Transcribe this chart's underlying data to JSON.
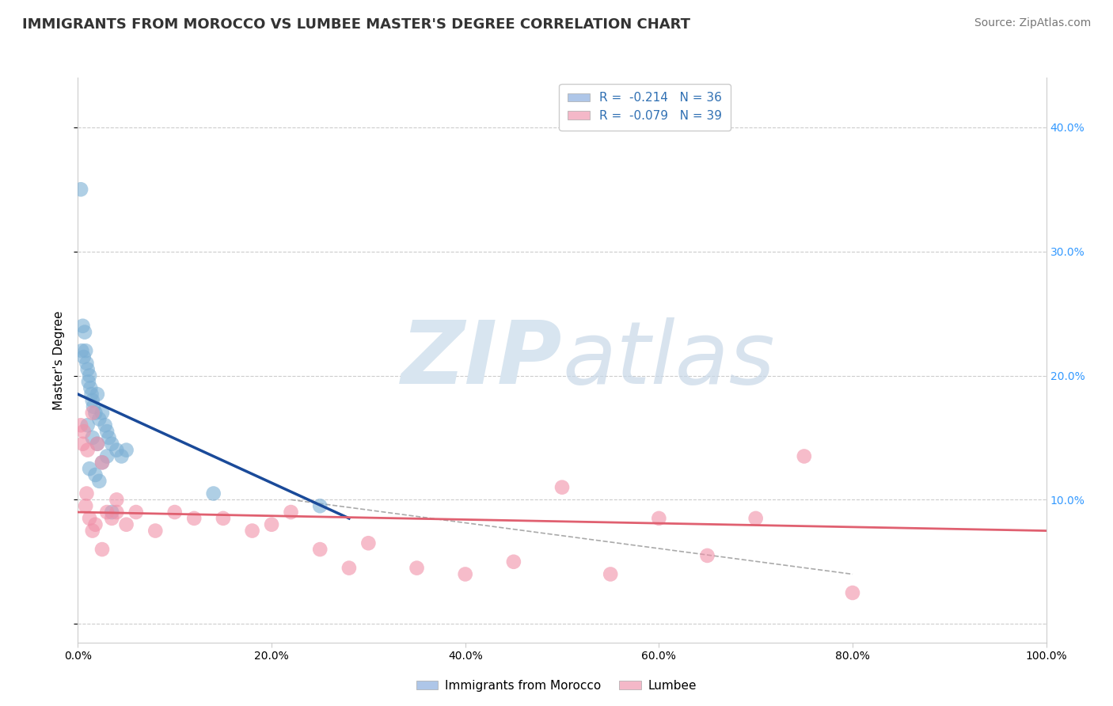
{
  "title": "IMMIGRANTS FROM MOROCCO VS LUMBEE MASTER'S DEGREE CORRELATION CHART",
  "source_text": "Source: ZipAtlas.com",
  "ylabel": "Master's Degree",
  "xlim": [
    0.0,
    100.0
  ],
  "ylim": [
    -1.5,
    44.0
  ],
  "x_ticks": [
    0.0,
    20.0,
    40.0,
    60.0,
    80.0,
    100.0
  ],
  "x_tick_labels": [
    "0.0%",
    "20.0%",
    "40.0%",
    "60.0%",
    "80.0%",
    "100.0%"
  ],
  "y_ticks_right": [
    10.0,
    20.0,
    30.0,
    40.0
  ],
  "y_tick_labels_right": [
    "10.0%",
    "20.0%",
    "30.0%",
    "40.0%"
  ],
  "legend_entries": [
    {
      "label": "R =  -0.214   N = 36",
      "facecolor": "#aec6e8"
    },
    {
      "label": "R =  -0.079   N = 39",
      "facecolor": "#f4b8c8"
    }
  ],
  "legend_labels_bottom": [
    "Immigrants from Morocco",
    "Lumbee"
  ],
  "blue_scatter_x": [
    0.3,
    0.4,
    0.5,
    0.6,
    0.7,
    0.8,
    0.9,
    1.0,
    1.1,
    1.2,
    1.3,
    1.4,
    1.5,
    1.6,
    1.8,
    2.0,
    2.2,
    2.5,
    2.8,
    3.0,
    3.2,
    3.5,
    4.0,
    4.5,
    5.0,
    1.0,
    1.5,
    2.0,
    2.5,
    3.0,
    1.2,
    1.8,
    2.2,
    3.5,
    14.0,
    25.0
  ],
  "blue_scatter_y": [
    35.0,
    22.0,
    24.0,
    21.5,
    23.5,
    22.0,
    21.0,
    20.5,
    19.5,
    20.0,
    19.0,
    18.5,
    18.0,
    17.5,
    17.0,
    18.5,
    16.5,
    17.0,
    16.0,
    15.5,
    15.0,
    14.5,
    14.0,
    13.5,
    14.0,
    16.0,
    15.0,
    14.5,
    13.0,
    13.5,
    12.5,
    12.0,
    11.5,
    9.0,
    10.5,
    9.5
  ],
  "pink_scatter_x": [
    0.3,
    0.5,
    0.8,
    1.0,
    1.2,
    1.5,
    1.8,
    2.0,
    2.5,
    3.0,
    3.5,
    4.0,
    5.0,
    6.0,
    8.0,
    10.0,
    12.0,
    15.0,
    18.0,
    20.0,
    22.0,
    25.0,
    28.0,
    30.0,
    35.0,
    40.0,
    45.0,
    50.0,
    55.0,
    60.0,
    65.0,
    70.0,
    75.0,
    80.0,
    0.6,
    0.9,
    1.5,
    2.5,
    4.0
  ],
  "pink_scatter_y": [
    16.0,
    14.5,
    9.5,
    14.0,
    8.5,
    17.0,
    8.0,
    14.5,
    13.0,
    9.0,
    8.5,
    9.0,
    8.0,
    9.0,
    7.5,
    9.0,
    8.5,
    8.5,
    7.5,
    8.0,
    9.0,
    6.0,
    4.5,
    6.5,
    4.5,
    4.0,
    5.0,
    11.0,
    4.0,
    8.5,
    5.5,
    8.5,
    13.5,
    2.5,
    15.5,
    10.5,
    7.5,
    6.0,
    10.0
  ],
  "blue_line_x": [
    0.0,
    28.0
  ],
  "blue_line_y": [
    18.5,
    8.5
  ],
  "pink_line_x": [
    0.0,
    100.0
  ],
  "pink_line_y": [
    9.0,
    7.5
  ],
  "dashed_line_x": [
    22.0,
    80.0
  ],
  "dashed_line_y": [
    10.0,
    4.0
  ],
  "background_color": "#ffffff",
  "grid_color": "#cccccc",
  "scatter_blue_color": "#7bafd4",
  "scatter_pink_color": "#f090a8",
  "line_blue_color": "#1a4a99",
  "line_pink_color": "#e06070",
  "watermark_color": "#d8e5f0",
  "title_fontsize": 13,
  "source_fontsize": 10,
  "axis_label_fontsize": 11
}
